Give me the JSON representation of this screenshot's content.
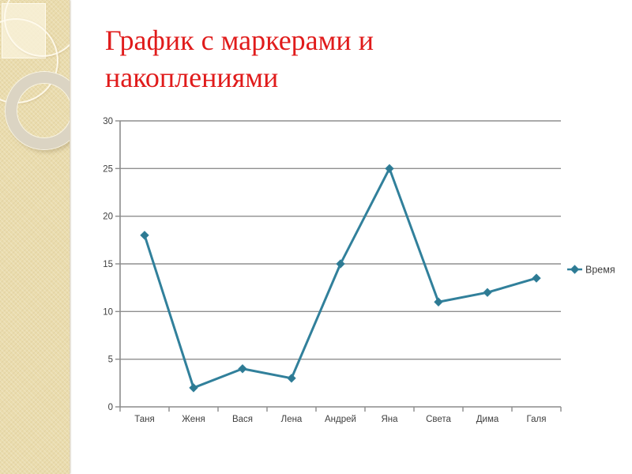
{
  "slide": {
    "title": "График с маркерами и\nнакоплениями",
    "title_color": "#E01B1B",
    "band_color": "#EADCAE"
  },
  "chart_data": {
    "type": "line",
    "title": "",
    "xlabel": "",
    "ylabel": "",
    "categories": [
      "Таня",
      "Женя",
      "Вася",
      "Лена",
      "Андрей",
      "Яна",
      "Света",
      "Дима",
      "Галя"
    ],
    "series": [
      {
        "name": "Время",
        "values": [
          18,
          2,
          4,
          3,
          15,
          25,
          11,
          12,
          13.5
        ]
      }
    ],
    "ylim": [
      0,
      30
    ],
    "yticks": [
      0,
      5,
      10,
      15,
      20,
      25,
      30
    ],
    "grid": true,
    "legend_position": "right",
    "marker": "diamond",
    "line_color": "#31809B",
    "marker_color": "#2E7A92",
    "grid_color": "#8F8F8F",
    "axis_color": "#8C8C8C",
    "label_color": "#3F3F3F"
  }
}
